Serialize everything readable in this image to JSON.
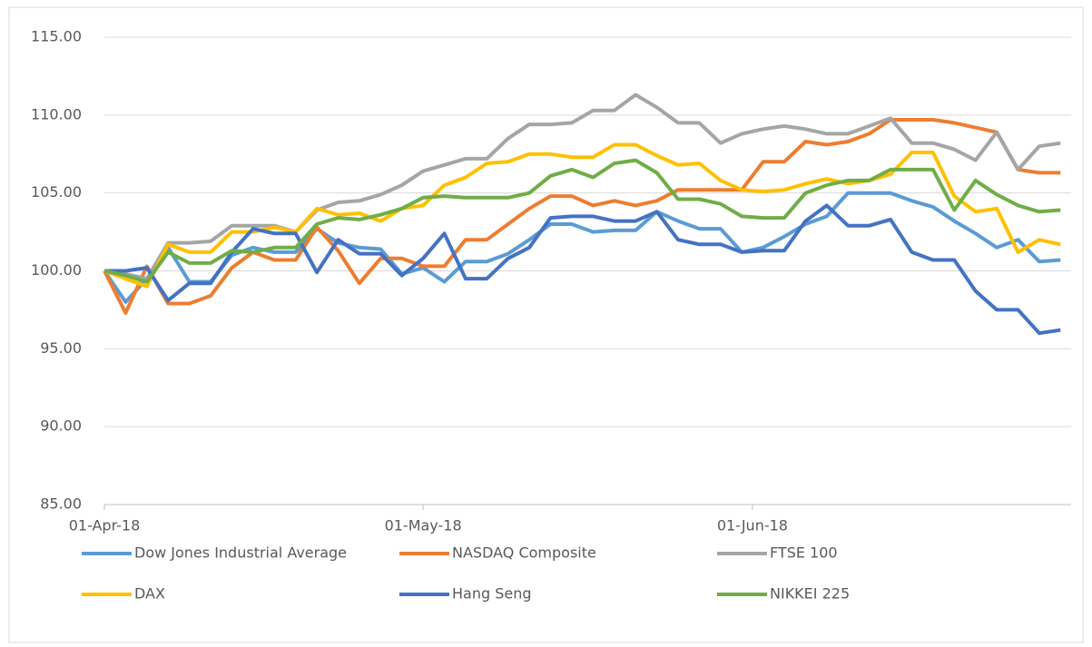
{
  "chart_data": {
    "type": "line",
    "x": [
      "2018-04-01",
      "2018-04-03",
      "2018-04-05",
      "2018-04-07",
      "2018-04-09",
      "2018-04-11",
      "2018-04-13",
      "2018-04-15",
      "2018-04-17",
      "2018-04-19",
      "2018-04-21",
      "2018-04-23",
      "2018-04-25",
      "2018-04-27",
      "2018-04-29",
      "2018-05-01",
      "2018-05-03",
      "2018-05-05",
      "2018-05-07",
      "2018-05-09",
      "2018-05-11",
      "2018-05-13",
      "2018-05-15",
      "2018-05-17",
      "2018-05-19",
      "2018-05-21",
      "2018-05-23",
      "2018-05-25",
      "2018-05-27",
      "2018-05-29",
      "2018-05-31",
      "2018-06-02",
      "2018-06-04",
      "2018-06-06",
      "2018-06-08",
      "2018-06-10",
      "2018-06-12",
      "2018-06-14",
      "2018-06-16",
      "2018-06-18",
      "2018-06-20",
      "2018-06-22",
      "2018-06-24",
      "2018-06-26",
      "2018-06-28",
      "2018-06-30"
    ],
    "xlim": [
      "2018-04-01",
      "2018-07-01"
    ],
    "xticks": [
      {
        "value": "2018-04-01",
        "label": "01-Apr-18"
      },
      {
        "value": "2018-05-01",
        "label": "01-May-18"
      },
      {
        "value": "2018-06-01",
        "label": "01-Jun-18"
      }
    ],
    "ylim": [
      85,
      115
    ],
    "yticks": [
      {
        "value": 85,
        "label": "85.00"
      },
      {
        "value": 90,
        "label": "90.00"
      },
      {
        "value": 95,
        "label": "95.00"
      },
      {
        "value": 100,
        "label": "100.00"
      },
      {
        "value": 105,
        "label": "105.00"
      },
      {
        "value": 110,
        "label": "110.00"
      },
      {
        "value": 115,
        "label": "115.00"
      }
    ],
    "grid": true,
    "legend": "bottom",
    "series": [
      {
        "name": "Dow Jones Industrial Average",
        "color": "#5b9bd5",
        "values": [
          100,
          98,
          99.5,
          101.5,
          99.3,
          99.3,
          101,
          101.5,
          101.2,
          101.2,
          102.7,
          101.8,
          101.5,
          101.4,
          99.8,
          100.2,
          99.3,
          100.6,
          100.6,
          101.1,
          102,
          103,
          103,
          102.5,
          102.6,
          102.6,
          103.8,
          103.2,
          102.7,
          102.7,
          101.2,
          101.5,
          102.2,
          103,
          103.5,
          105,
          105,
          105,
          104.5,
          104.1,
          103.2,
          102.4,
          101.5,
          102,
          100.6,
          100.7
        ]
      },
      {
        "name": "NASDAQ Composite",
        "color": "#ed7d31",
        "values": [
          100,
          97.3,
          100.3,
          97.9,
          97.9,
          98.4,
          100.2,
          101.2,
          100.7,
          100.7,
          102.8,
          101.3,
          99.2,
          100.8,
          100.8,
          100.3,
          100.3,
          102,
          102,
          103,
          104,
          104.8,
          104.8,
          104.2,
          104.5,
          104.2,
          104.5,
          105.2,
          105.2,
          105.2,
          105.2,
          107,
          107,
          108.3,
          108.1,
          108.3,
          108.8,
          109.7,
          109.7,
          109.7,
          109.5,
          109.2,
          108.9,
          106.5,
          106.3,
          106.3
        ]
      },
      {
        "name": "FTSE 100",
        "color": "#a5a5a5",
        "values": [
          100,
          99.8,
          99.5,
          101.8,
          101.8,
          101.9,
          102.9,
          102.9,
          102.9,
          102.5,
          103.9,
          104.4,
          104.5,
          104.9,
          105.5,
          106.4,
          106.8,
          107.2,
          107.2,
          108.5,
          109.4,
          109.4,
          109.5,
          110.3,
          110.3,
          111.3,
          110.5,
          109.5,
          109.5,
          108.2,
          108.8,
          109.1,
          109.3,
          109.1,
          108.8,
          108.8,
          109.3,
          109.8,
          108.2,
          108.2,
          107.8,
          107.1,
          108.9,
          106.5,
          108,
          108.2
        ]
      },
      {
        "name": "DAX",
        "color": "#ffc000",
        "values": [
          100,
          99.5,
          99,
          101.7,
          101.2,
          101.2,
          102.5,
          102.5,
          102.8,
          102.5,
          104,
          103.6,
          103.7,
          103.2,
          104,
          104.2,
          105.5,
          106,
          106.9,
          107,
          107.5,
          107.5,
          107.3,
          107.3,
          108.1,
          108.1,
          107.4,
          106.8,
          106.9,
          105.8,
          105.2,
          105.1,
          105.2,
          105.6,
          105.9,
          105.6,
          105.8,
          106.2,
          107.6,
          107.6,
          104.8,
          103.8,
          104,
          101.2,
          102,
          101.7
        ]
      },
      {
        "name": "Hang Seng",
        "color": "#4472c4",
        "values": [
          100,
          100,
          100.2,
          98.1,
          99.2,
          99.2,
          101.2,
          102.7,
          102.4,
          102.4,
          99.9,
          102,
          101.1,
          101.1,
          99.7,
          100.8,
          102.4,
          99.5,
          99.5,
          100.8,
          101.5,
          103.4,
          103.5,
          103.5,
          103.2,
          103.2,
          103.8,
          102,
          101.7,
          101.7,
          101.2,
          101.3,
          101.3,
          103.2,
          104.2,
          102.9,
          102.9,
          103.3,
          101.2,
          100.7,
          100.7,
          98.7,
          97.5,
          97.5,
          96,
          96.2
        ]
      },
      {
        "name": "NIKKEI 225",
        "color": "#70ad47",
        "values": [
          100,
          99.7,
          99.3,
          101.2,
          100.5,
          100.5,
          101.3,
          101.2,
          101.5,
          101.5,
          103,
          103.4,
          103.3,
          103.6,
          104,
          104.7,
          104.8,
          104.7,
          104.7,
          104.7,
          105,
          106.1,
          106.5,
          106,
          106.9,
          107.1,
          106.3,
          104.6,
          104.6,
          104.3,
          103.5,
          103.4,
          103.4,
          105,
          105.5,
          105.8,
          105.8,
          106.5,
          106.5,
          106.5,
          103.9,
          105.8,
          104.9,
          104.2,
          103.8,
          103.9
        ]
      }
    ]
  }
}
